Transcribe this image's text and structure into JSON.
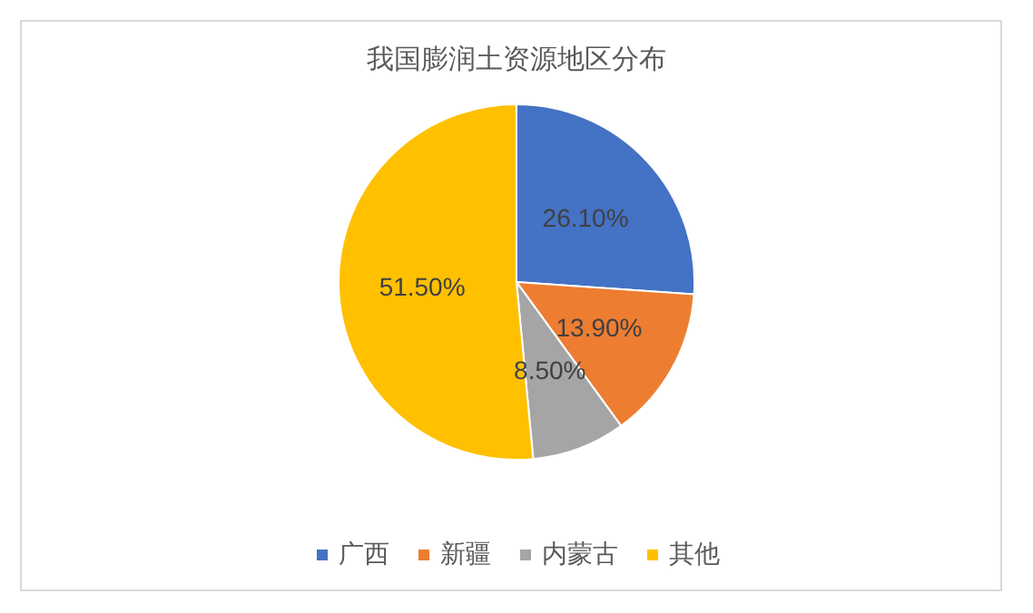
{
  "chart_data": {
    "type": "pie",
    "title": "我国膨润土资源地区分布",
    "categories": [
      "广西",
      "新疆",
      "内蒙古",
      "其他"
    ],
    "values": [
      26.1,
      13.9,
      8.5,
      51.5
    ],
    "colors": [
      "#4472c4",
      "#ed7d31",
      "#a5a5a5",
      "#ffc000"
    ],
    "value_labels": [
      "26.10%",
      "13.90%",
      "8.50%",
      "51.50%"
    ],
    "legend": "bottom"
  }
}
